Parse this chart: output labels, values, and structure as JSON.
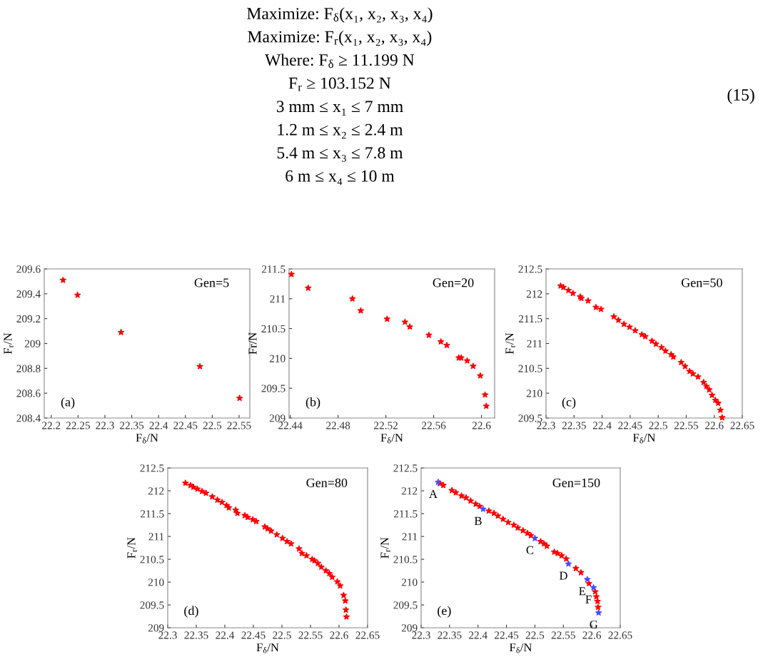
{
  "chart_data": [
    {
      "type": "other",
      "annotations": [
        "Maximize: F$_{δ}$(x₁, x₂, x₃, x₄)",
        "Maximize: F$_{r}$(x₁, x₂, x₃, x₄)",
        "Where: F$_{δ}$ ≥ 11.199 N",
        "F$_{r}$ ≥ 103.152 N",
        "3 mm ≤ x₁ ≤ 7 mm",
        "1.2 m ≤ x₂ ≤ 2.4 m",
        "5.4 m ≤ x₃ ≤ 7.8 m",
        "6 m ≤ x₄ ≤ 10 m",
        "(15)"
      ]
    },
    {
      "type": "scatter",
      "xlabel": "F$_{δ}$/N",
      "ylabel": "F$_{r}$/N",
      "marker": "star",
      "grid": false,
      "xlim": [
        22.187,
        22.57
      ],
      "ylim": [
        208.4,
        209.6
      ],
      "xticks": [
        22.2,
        22.25,
        22.3,
        22.35,
        22.4,
        22.45,
        22.5,
        22.55
      ],
      "yticks": [
        208.4,
        208.6,
        208.8,
        209,
        209.2,
        209.4,
        209.6
      ],
      "annotations": [
        "Gen=5",
        "(a)"
      ],
      "series": [
        {
          "color": "#ff0000",
          "x": [
            22.222,
            22.249,
            22.33,
            22.477,
            22.551
          ],
          "values": [
            209.51,
            209.39,
            209.09,
            208.815,
            208.56
          ]
        }
      ]
    },
    {
      "type": "scatter",
      "xlabel": "F$_{δ}$/N",
      "ylabel": "Fr/N",
      "marker": "star",
      "grid": false,
      "xlim": [
        22.439,
        22.611
      ],
      "ylim": [
        209,
        211.5
      ],
      "xticks": [
        22.44,
        22.48,
        22.52,
        22.56,
        22.6
      ],
      "yticks": [
        209,
        209.5,
        210,
        210.5,
        211,
        211.5
      ],
      "annotations": [
        "Gen=20",
        "(b)"
      ],
      "series": [
        {
          "color": "#ff0000",
          "x": [
            22.441,
            22.455,
            22.492,
            22.499,
            22.521,
            22.536,
            22.54,
            22.556,
            22.566,
            22.571,
            22.581,
            22.583,
            22.588,
            22.593,
            22.599,
            22.603,
            22.604
          ],
          "values": [
            211.41,
            211.18,
            211.0,
            210.8,
            210.66,
            210.61,
            210.53,
            210.39,
            210.28,
            210.22,
            210.01,
            210.01,
            209.96,
            209.87,
            209.71,
            209.39,
            209.2
          ]
        }
      ]
    },
    {
      "type": "scatter",
      "xlabel": "F$_{δ}$/N",
      "ylabel": "F$_{r}$/N",
      "marker": "star",
      "grid": false,
      "xlim": [
        22.3,
        22.65
      ],
      "ylim": [
        209.5,
        212.5
      ],
      "xticks": [
        22.3,
        22.35,
        22.4,
        22.45,
        22.5,
        22.55,
        22.6,
        22.65
      ],
      "yticks": [
        209.5,
        210,
        210.5,
        211,
        211.5,
        212,
        212.5
      ],
      "annotations": [
        "Gen=50",
        "(c)"
      ],
      "series": [
        {
          "color": "#ff0000",
          "x": [
            22.326,
            22.331,
            22.34,
            22.348,
            22.361,
            22.363,
            22.375,
            22.389,
            22.398,
            22.421,
            22.429,
            22.439,
            22.449,
            22.459,
            22.471,
            22.477,
            22.489,
            22.496,
            22.506,
            22.513,
            22.523,
            22.527,
            22.541,
            22.548,
            22.556,
            22.562,
            22.571,
            22.581,
            22.586,
            22.591,
            22.596,
            22.602,
            22.607,
            22.611,
            22.614
          ],
          "values": [
            212.16,
            212.13,
            212.07,
            212.01,
            211.94,
            211.91,
            211.86,
            211.73,
            211.69,
            211.54,
            211.47,
            211.39,
            211.33,
            211.26,
            211.18,
            211.14,
            211.05,
            210.99,
            210.92,
            210.85,
            210.78,
            210.73,
            210.62,
            210.54,
            210.44,
            210.39,
            210.33,
            210.22,
            210.14,
            210.07,
            209.96,
            209.86,
            209.8,
            209.66,
            209.51
          ]
        }
      ]
    },
    {
      "type": "scatter",
      "xlabel": "F$_{δ}$/N",
      "ylabel": "F$_{r}$/N",
      "marker": "star",
      "grid": false,
      "xlim": [
        22.3,
        22.65
      ],
      "ylim": [
        209,
        212.5
      ],
      "xticks": [
        22.3,
        22.35,
        22.4,
        22.45,
        22.5,
        22.55,
        22.6,
        22.65
      ],
      "yticks": [
        209,
        209.5,
        210,
        210.5,
        211,
        211.5,
        212,
        212.5
      ],
      "annotations": [
        "Gen=80",
        "(d)"
      ],
      "series": [
        {
          "color": "#ff0000",
          "x": [
            22.331,
            22.34,
            22.345,
            22.352,
            22.36,
            22.367,
            22.378,
            22.387,
            22.395,
            22.403,
            22.407,
            22.419,
            22.422,
            22.435,
            22.44,
            22.449,
            22.455,
            22.47,
            22.475,
            22.481,
            22.491,
            22.501,
            22.509,
            22.516,
            22.53,
            22.535,
            22.543,
            22.553,
            22.557,
            22.563,
            22.569,
            22.577,
            22.583,
            22.588,
            22.597,
            22.602,
            22.608,
            22.611,
            22.612,
            22.613
          ],
          "values": [
            212.17,
            212.12,
            212.08,
            212.04,
            211.99,
            211.95,
            211.87,
            211.8,
            211.75,
            211.68,
            211.63,
            211.58,
            211.51,
            211.46,
            211.42,
            211.37,
            211.33,
            211.21,
            211.17,
            211.12,
            211.04,
            210.96,
            210.89,
            210.84,
            210.73,
            210.63,
            210.58,
            210.5,
            210.47,
            210.41,
            210.33,
            210.25,
            210.19,
            210.11,
            210.01,
            209.92,
            209.71,
            209.59,
            209.39,
            209.24
          ]
        }
      ]
    },
    {
      "type": "scatter",
      "xlabel": "F$_{δ}$/N",
      "ylabel": "F$_{r}$/N",
      "marker": "star",
      "grid": false,
      "xlim": [
        22.3,
        22.65
      ],
      "ylim": [
        209,
        212.5
      ],
      "xticks": [
        22.3,
        22.35,
        22.4,
        22.45,
        22.5,
        22.55,
        22.6,
        22.65
      ],
      "yticks": [
        209,
        209.5,
        210,
        210.5,
        211,
        211.5,
        212,
        212.5
      ],
      "annotations": [
        "Gen=150",
        "(e)",
        {
          "text": "A",
          "x": 22.33,
          "y": 212.19
        },
        {
          "text": "B",
          "x": 22.409,
          "y": 211.6
        },
        {
          "text": "C",
          "x": 22.5,
          "y": 210.96
        },
        {
          "text": "D",
          "x": 22.559,
          "y": 210.4
        },
        {
          "text": "E",
          "x": 22.592,
          "y": 210.06
        },
        {
          "text": "F",
          "x": 22.603,
          "y": 209.88
        },
        {
          "text": "G",
          "x": 22.612,
          "y": 209.33
        }
      ],
      "series": [
        {
          "color": "#ff0000",
          "x": [
            22.333,
            22.339,
            22.354,
            22.361,
            22.371,
            22.379,
            22.387,
            22.396,
            22.403,
            22.419,
            22.428,
            22.435,
            22.444,
            22.453,
            22.463,
            22.47,
            22.479,
            22.487,
            22.493,
            22.51,
            22.516,
            22.521,
            22.534,
            22.54,
            22.547,
            22.555,
            22.572,
            22.581,
            22.595,
            22.606,
            22.608,
            22.61,
            22.611
          ],
          "values": [
            212.16,
            212.12,
            212.01,
            211.96,
            211.89,
            211.85,
            211.78,
            211.71,
            211.66,
            211.56,
            211.51,
            211.45,
            211.38,
            211.31,
            211.25,
            211.19,
            211.13,
            211.07,
            211.02,
            210.89,
            210.84,
            210.79,
            210.66,
            210.63,
            210.58,
            210.51,
            210.3,
            210.21,
            209.97,
            209.79,
            209.68,
            209.58,
            209.45
          ]
        },
        {
          "color": "#4a4aff",
          "x": [
            22.33,
            22.409,
            22.5,
            22.559,
            22.592,
            22.603,
            22.612
          ],
          "values": [
            212.19,
            211.6,
            210.96,
            210.4,
            210.06,
            209.88,
            209.33
          ]
        }
      ]
    }
  ]
}
